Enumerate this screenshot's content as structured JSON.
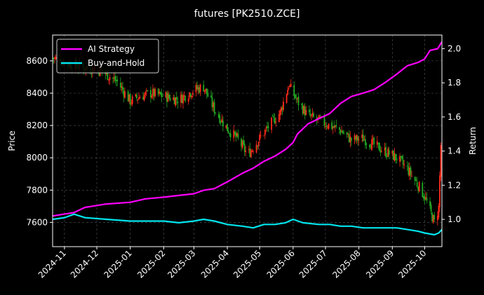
{
  "chart_data": {
    "type": "line",
    "title": "futures [PK2510.ZCE]",
    "xlabel": "",
    "ylabel": "Price",
    "y2label": "Return",
    "x_ticks": [
      "2024-11",
      "2024-12",
      "2025-01",
      "2025-02",
      "2025-03",
      "2025-04",
      "2025-05",
      "2025-06",
      "2025-07",
      "2025-08",
      "2025-09",
      "2025-10"
    ],
    "xlim": [
      "2024-10-21",
      "2025-10-17"
    ],
    "ylim": [
      7450,
      8760
    ],
    "y_ticks": [
      "7600",
      "7800",
      "8000",
      "8200",
      "8400",
      "8600"
    ],
    "y2lim": [
      0.84,
      2.08
    ],
    "y2_ticks": [
      "1.0",
      "1.2",
      "1.4",
      "1.6",
      "1.8",
      "2.0"
    ],
    "grid": true,
    "legend_position": "top-left",
    "colors": {
      "ai_strategy": "#ff00ff",
      "buy_hold": "#00e5ee",
      "candle_up": "#ff2a1a",
      "candle_down": "#22aa22",
      "grid": "#555555",
      "background": "#000000"
    },
    "price_path": [
      [
        "2024-10-21",
        8620
      ],
      [
        "2024-11-05",
        8580
      ],
      [
        "2024-11-20",
        8560
      ],
      [
        "2024-12-05",
        8540
      ],
      [
        "2024-12-20",
        8470
      ],
      [
        "2025-01-01",
        8350
      ],
      [
        "2025-01-10",
        8380
      ],
      [
        "2025-01-20",
        8400
      ],
      [
        "2025-02-15",
        8360
      ],
      [
        "2025-03-01",
        8420
      ],
      [
        "2025-03-10",
        8440
      ],
      [
        "2025-03-20",
        8300
      ],
      [
        "2025-04-01",
        8180
      ],
      [
        "2025-04-10",
        8120
      ],
      [
        "2025-04-20",
        8020
      ],
      [
        "2025-05-01",
        8120
      ],
      [
        "2025-05-10",
        8200
      ],
      [
        "2025-05-20",
        8280
      ],
      [
        "2025-05-28",
        8450
      ],
      [
        "2025-06-05",
        8350
      ],
      [
        "2025-06-15",
        8260
      ],
      [
        "2025-06-25",
        8230
      ],
      [
        "2025-07-05",
        8200
      ],
      [
        "2025-07-15",
        8170
      ],
      [
        "2025-07-25",
        8110
      ],
      [
        "2025-08-05",
        8120
      ],
      [
        "2025-08-15",
        8080
      ],
      [
        "2025-08-25",
        8040
      ],
      [
        "2025-09-05",
        8000
      ],
      [
        "2025-09-15",
        7930
      ],
      [
        "2025-09-25",
        7830
      ],
      [
        "2025-10-01",
        7760
      ],
      [
        "2025-10-10",
        7600
      ],
      [
        "2025-10-14",
        7690
      ],
      [
        "2025-10-16",
        8080
      ]
    ],
    "series": [
      {
        "name": "AI Strategy",
        "points": [
          [
            "2024-10-21",
            1.02
          ],
          [
            "2024-11-10",
            1.04
          ],
          [
            "2024-11-20",
            1.07
          ],
          [
            "2024-12-10",
            1.09
          ],
          [
            "2025-01-01",
            1.1
          ],
          [
            "2025-01-15",
            1.12
          ],
          [
            "2025-02-01",
            1.13
          ],
          [
            "2025-02-15",
            1.14
          ],
          [
            "2025-03-01",
            1.15
          ],
          [
            "2025-03-10",
            1.17
          ],
          [
            "2025-03-20",
            1.18
          ],
          [
            "2025-04-01",
            1.22
          ],
          [
            "2025-04-15",
            1.27
          ],
          [
            "2025-04-25",
            1.3
          ],
          [
            "2025-05-05",
            1.34
          ],
          [
            "2025-05-15",
            1.37
          ],
          [
            "2025-05-25",
            1.41
          ],
          [
            "2025-06-01",
            1.45
          ],
          [
            "2025-06-05",
            1.5
          ],
          [
            "2025-06-15",
            1.56
          ],
          [
            "2025-06-25",
            1.59
          ],
          [
            "2025-07-05",
            1.62
          ],
          [
            "2025-07-15",
            1.68
          ],
          [
            "2025-07-25",
            1.72
          ],
          [
            "2025-08-05",
            1.74
          ],
          [
            "2025-08-15",
            1.76
          ],
          [
            "2025-08-25",
            1.8
          ],
          [
            "2025-09-05",
            1.85
          ],
          [
            "2025-09-15",
            1.9
          ],
          [
            "2025-09-25",
            1.92
          ],
          [
            "2025-10-01",
            1.94
          ],
          [
            "2025-10-06",
            1.99
          ],
          [
            "2025-10-13",
            2.0
          ],
          [
            "2025-10-17",
            2.04
          ]
        ]
      },
      {
        "name": "Buy-and-Hold",
        "points": [
          [
            "2024-10-21",
            1.0
          ],
          [
            "2024-11-01",
            1.01
          ],
          [
            "2024-11-10",
            1.03
          ],
          [
            "2024-11-20",
            1.01
          ],
          [
            "2024-12-10",
            1.0
          ],
          [
            "2025-01-01",
            0.99
          ],
          [
            "2025-01-15",
            0.99
          ],
          [
            "2025-02-01",
            0.99
          ],
          [
            "2025-02-15",
            0.98
          ],
          [
            "2025-03-01",
            0.99
          ],
          [
            "2025-03-10",
            1.0
          ],
          [
            "2025-03-20",
            0.99
          ],
          [
            "2025-04-01",
            0.97
          ],
          [
            "2025-04-15",
            0.96
          ],
          [
            "2025-04-25",
            0.95
          ],
          [
            "2025-05-05",
            0.97
          ],
          [
            "2025-05-15",
            0.97
          ],
          [
            "2025-05-25",
            0.98
          ],
          [
            "2025-06-01",
            1.0
          ],
          [
            "2025-06-10",
            0.98
          ],
          [
            "2025-06-25",
            0.97
          ],
          [
            "2025-07-05",
            0.97
          ],
          [
            "2025-07-15",
            0.96
          ],
          [
            "2025-07-25",
            0.96
          ],
          [
            "2025-08-05",
            0.95
          ],
          [
            "2025-08-15",
            0.95
          ],
          [
            "2025-08-25",
            0.95
          ],
          [
            "2025-09-05",
            0.95
          ],
          [
            "2025-09-15",
            0.94
          ],
          [
            "2025-09-25",
            0.93
          ],
          [
            "2025-10-01",
            0.92
          ],
          [
            "2025-10-10",
            0.91
          ],
          [
            "2025-10-14",
            0.92
          ],
          [
            "2025-10-17",
            0.94
          ]
        ]
      }
    ]
  }
}
